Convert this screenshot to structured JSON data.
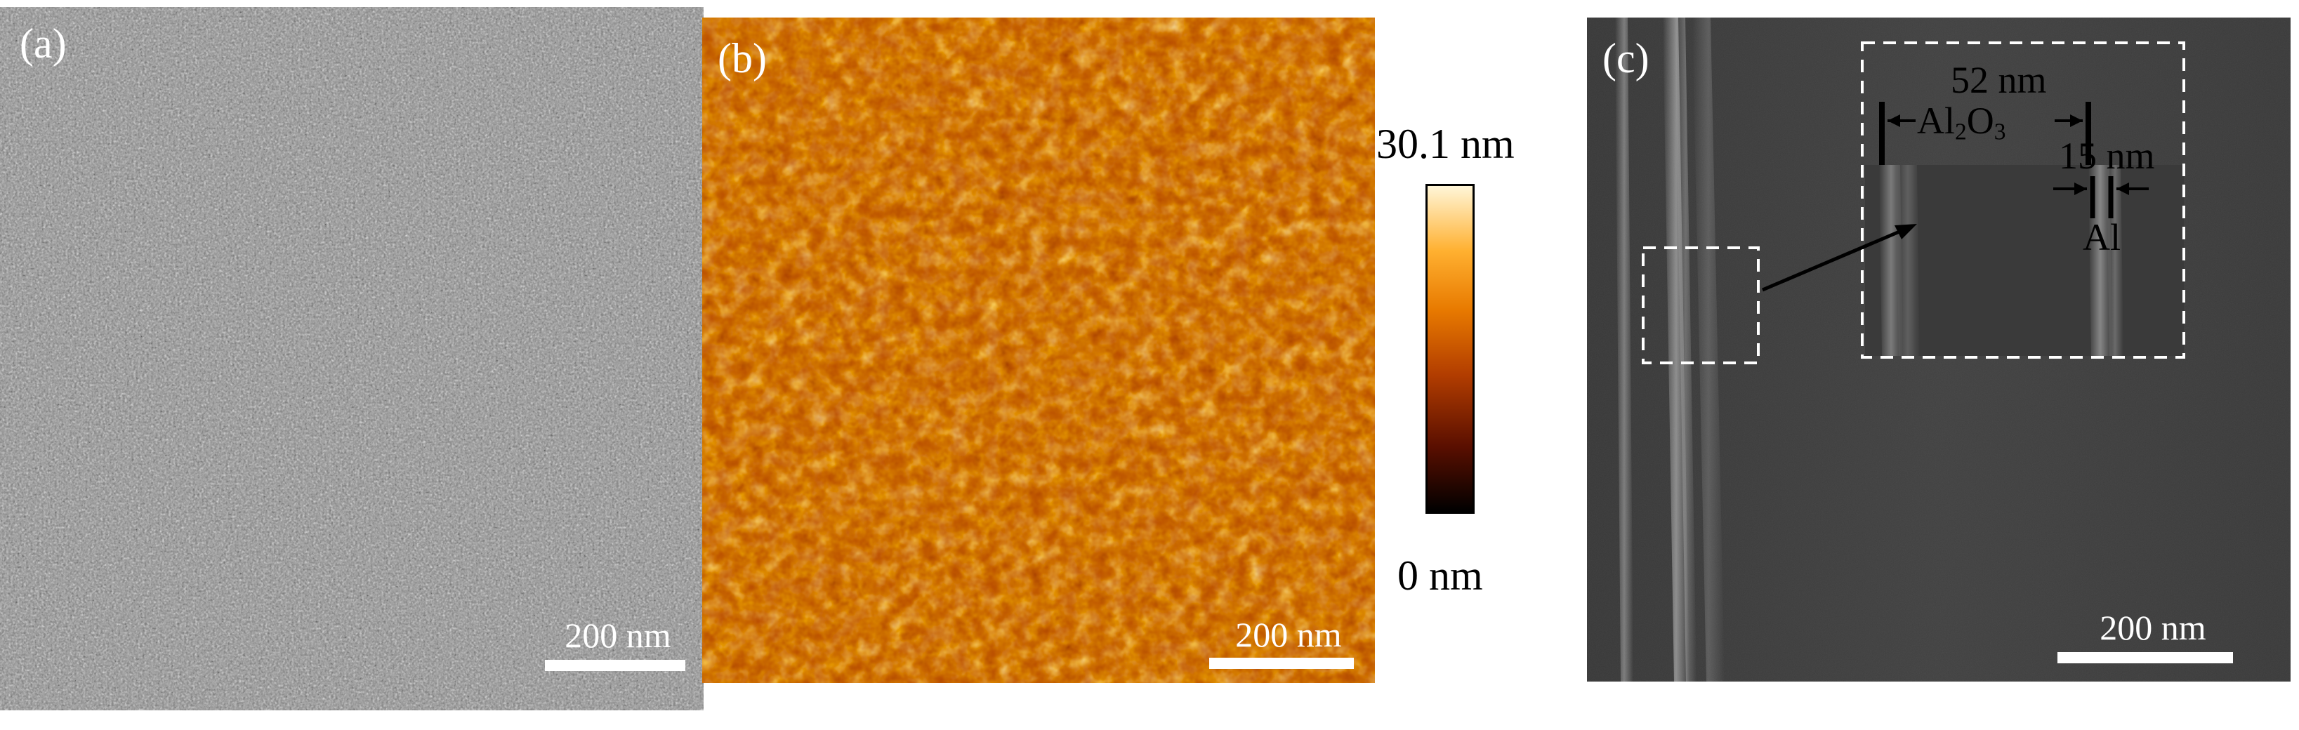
{
  "panels": {
    "a": {
      "label": "(a)",
      "scale_bar": "200 nm"
    },
    "b": {
      "label": "(b)",
      "scale_bar": "200 nm",
      "colorbar": {
        "max": "30.1 nm",
        "min": "0 nm"
      },
      "colors": [
        "#000000",
        "#5a0f00",
        "#b23d00",
        "#e87a00",
        "#ffb030",
        "#fff6d8"
      ]
    },
    "c": {
      "label": "(c)",
      "scale_bar": "200 nm",
      "inset": {
        "oxide_thickness": "52 nm",
        "oxide_material_base": "Al",
        "oxide_sub1": "2",
        "oxide_mid": "O",
        "oxide_sub2": "3",
        "metal_thickness": "15 nm",
        "metal_material": "Al"
      }
    }
  }
}
